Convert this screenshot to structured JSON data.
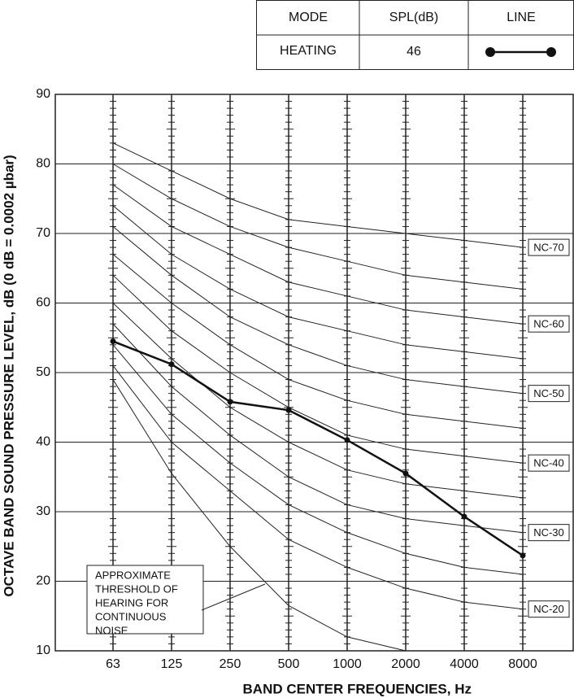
{
  "chart_data": {
    "type": "line",
    "legend_table": {
      "headers": [
        "MODE",
        "SPL(dB)",
        "LINE"
      ]
    },
    "series": [
      {
        "name": "HEATING",
        "spl": 46,
        "color": "#111111",
        "values": [
          54.5,
          51.2,
          45.8,
          44.6,
          40.3,
          35.5,
          29.3,
          23.7
        ]
      }
    ],
    "categories": [
      "63",
      "125",
      "250",
      "500",
      "1000",
      "2000",
      "4000",
      "8000"
    ],
    "curves": [
      {
        "label": "NC-70",
        "values": [
          83,
          79,
          75,
          72,
          71,
          70,
          69,
          68
        ]
      },
      {
        "values": [
          80,
          75,
          71,
          68,
          66,
          64,
          63,
          62
        ]
      },
      {
        "label": "NC-60",
        "values": [
          77,
          71,
          67,
          63,
          61,
          59,
          58,
          57
        ]
      },
      {
        "values": [
          74,
          67,
          62,
          58,
          56,
          54,
          53,
          52
        ]
      },
      {
        "label": "NC-50",
        "values": [
          71,
          64,
          58,
          54,
          51,
          49,
          48,
          47
        ]
      },
      {
        "values": [
          67,
          60,
          54,
          49,
          46,
          44,
          43,
          42
        ]
      },
      {
        "label": "NC-40",
        "values": [
          64,
          56,
          50,
          45,
          41,
          39,
          38,
          37
        ]
      },
      {
        "values": [
          60,
          52,
          45,
          40,
          36,
          34,
          33,
          32
        ]
      },
      {
        "label": "NC-30",
        "values": [
          57,
          48,
          41,
          35,
          31,
          29,
          28,
          27
        ]
      },
      {
        "values": [
          54,
          44,
          37,
          31,
          27,
          24,
          22,
          21
        ]
      },
      {
        "label": "NC-20",
        "values": [
          51,
          40,
          33,
          26,
          22,
          19,
          17,
          16
        ]
      },
      {
        "values": [
          49,
          35.5,
          25,
          16.5,
          12,
          10,
          null,
          null
        ]
      }
    ],
    "curve_color": "#222222",
    "annotation": [
      "APPROXIMATE",
      "THRESHOLD OF",
      "HEARING FOR",
      "CONTINUOUS",
      "NOISE"
    ],
    "xlabel": "BAND CENTER FREQUENCIES, Hz",
    "ylabel": "OCTAVE BAND SOUND PRESSURE LEVEL, dB (0 dB = 0.0002 µbar)",
    "ylim": [
      10,
      90
    ],
    "yticks": [
      10,
      20,
      30,
      40,
      50,
      60,
      70,
      80,
      90
    ],
    "grid": true
  }
}
